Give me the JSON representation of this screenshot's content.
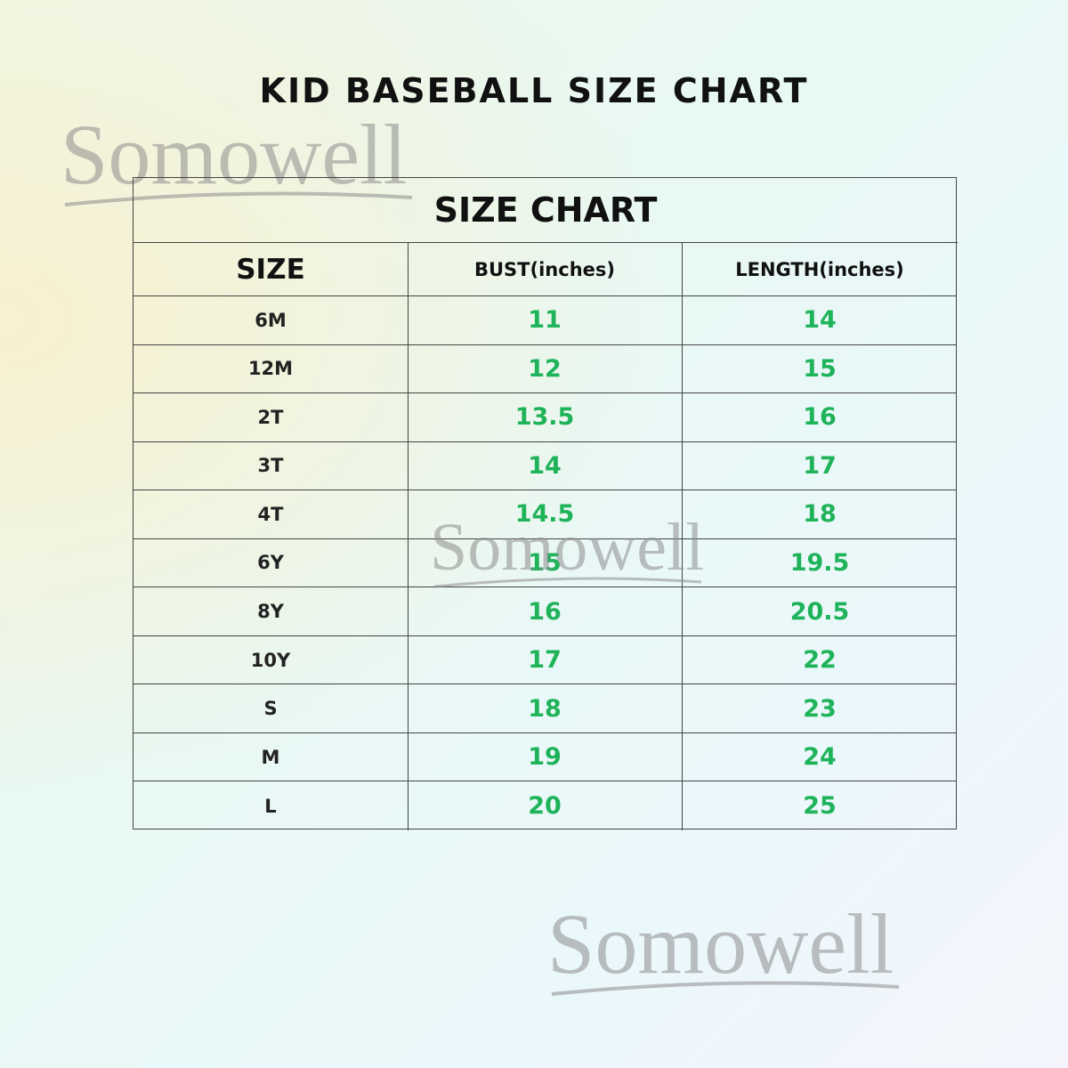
{
  "title": "KID BASEBALL SIZE CHART",
  "watermarks": [
    "Somowell",
    "Somowell",
    "Somowell"
  ],
  "table": {
    "caption": "SIZE CHART",
    "headers": [
      "SIZE",
      "BUST(inches)",
      "LENGTH(inches)"
    ],
    "rows": [
      [
        "6M",
        "11",
        "14"
      ],
      [
        "12M",
        "12",
        "15"
      ],
      [
        "2T",
        "13.5",
        "16"
      ],
      [
        "3T",
        "14",
        "17"
      ],
      [
        "4T",
        "14.5",
        "18"
      ],
      [
        "6Y",
        "15",
        "19.5"
      ],
      [
        "8Y",
        "16",
        "20.5"
      ],
      [
        "10Y",
        "17",
        "22"
      ],
      [
        "S",
        "18",
        "23"
      ],
      [
        "M",
        "19",
        "24"
      ],
      [
        "L",
        "20",
        "25"
      ]
    ]
  }
}
